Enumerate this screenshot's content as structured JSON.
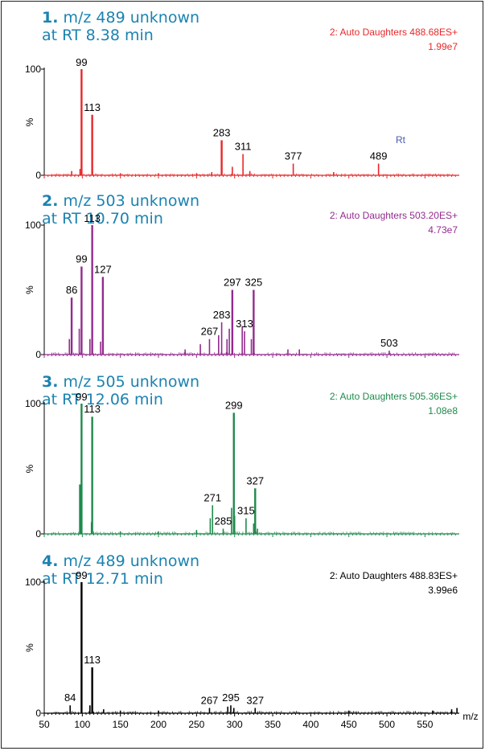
{
  "chart_data": {
    "type": "line",
    "xlabel": "m/z",
    "xlim": [
      50,
      595
    ],
    "x_ticks": [
      50,
      100,
      150,
      200,
      250,
      300,
      350,
      400,
      450,
      500,
      550
    ],
    "ylabel": "%",
    "ylim": [
      0,
      100
    ],
    "y_ticks": [
      0,
      100
    ],
    "panels": [
      {
        "number": "1.",
        "title_line1": "m/z 489 unknown",
        "title_line2": "at RT 8.38 min",
        "scan_info": "2: Auto Daughters 488.68ES+",
        "intensity": "1.99e7",
        "color": "#e8282a",
        "title_color": "#1b83b0",
        "annotation": "Rt",
        "annotation_color": "#4a5bb0",
        "labels": [
          {
            "x": 99,
            "y": 100,
            "text": "99"
          },
          {
            "x": 113,
            "y": 57,
            "text": "113"
          },
          {
            "x": 283,
            "y": 33,
            "text": "283"
          },
          {
            "x": 311,
            "y": 20,
            "text": "311"
          },
          {
            "x": 377,
            "y": 11,
            "text": "377"
          },
          {
            "x": 489,
            "y": 11,
            "text": "489"
          }
        ],
        "peaks": [
          [
            99,
            100
          ],
          [
            113,
            57
          ],
          [
            283,
            33
          ],
          [
            311,
            20
          ],
          [
            377,
            11
          ],
          [
            489,
            11
          ],
          [
            86,
            4
          ],
          [
            97,
            6
          ],
          [
            297,
            8
          ],
          [
            320,
            4
          ],
          [
            270,
            3
          ],
          [
            430,
            3
          ],
          [
            250,
            2
          ],
          [
            150,
            2
          ],
          [
            200,
            2
          ]
        ]
      },
      {
        "number": "2.",
        "title_line1": "m/z 503 unknown",
        "title_line2": "at RT 10.70 min",
        "scan_info": "2: Auto Daughters 503.20ES+",
        "intensity": "4.73e7",
        "color": "#932b8e",
        "title_color": "#1b83b0",
        "labels": [
          {
            "x": 86,
            "y": 44,
            "text": "86"
          },
          {
            "x": 99,
            "y": 68,
            "text": "99"
          },
          {
            "x": 113,
            "y": 100,
            "text": "113"
          },
          {
            "x": 127,
            "y": 60,
            "text": "127"
          },
          {
            "x": 267,
            "y": 12,
            "text": "267"
          },
          {
            "x": 283,
            "y": 25,
            "text": "283"
          },
          {
            "x": 297,
            "y": 50,
            "text": "297"
          },
          {
            "x": 313,
            "y": 18,
            "text": "313"
          },
          {
            "x": 325,
            "y": 50,
            "text": "325"
          },
          {
            "x": 503,
            "y": 3,
            "text": "503"
          }
        ],
        "peaks": [
          [
            86,
            44
          ],
          [
            99,
            68
          ],
          [
            113,
            100
          ],
          [
            127,
            60
          ],
          [
            267,
            12
          ],
          [
            283,
            25
          ],
          [
            297,
            50
          ],
          [
            313,
            18
          ],
          [
            325,
            50
          ],
          [
            503,
            3
          ],
          [
            83,
            12
          ],
          [
            96,
            20
          ],
          [
            110,
            12
          ],
          [
            124,
            10
          ],
          [
            279,
            15
          ],
          [
            293,
            20
          ],
          [
            310,
            22
          ],
          [
            255,
            8
          ],
          [
            235,
            4
          ],
          [
            370,
            4
          ],
          [
            385,
            4
          ],
          [
            290,
            12
          ],
          [
            322,
            12
          ]
        ]
      },
      {
        "number": "3.",
        "title_line1": "m/z 505 unknown",
        "title_line2": "at RT 12.06 min",
        "scan_info": "2: Auto Daughters 505.36ES+",
        "intensity": "1.08e8",
        "color": "#1f8a4c",
        "title_color": "#1b83b0",
        "labels": [
          {
            "x": 99,
            "y": 100,
            "text": "99"
          },
          {
            "x": 113,
            "y": 90,
            "text": "113"
          },
          {
            "x": 299,
            "y": 93,
            "text": "299"
          },
          {
            "x": 271,
            "y": 22,
            "text": "271"
          },
          {
            "x": 285,
            "y": 4,
            "text": "285"
          },
          {
            "x": 315,
            "y": 12,
            "text": "315"
          },
          {
            "x": 327,
            "y": 35,
            "text": "327"
          }
        ],
        "peaks": [
          [
            99,
            100
          ],
          [
            113,
            90
          ],
          [
            299,
            93
          ],
          [
            271,
            22
          ],
          [
            285,
            4
          ],
          [
            315,
            12
          ],
          [
            327,
            35
          ],
          [
            97,
            38
          ],
          [
            112,
            9
          ],
          [
            268,
            12
          ],
          [
            296,
            20
          ],
          [
            300,
            14
          ],
          [
            325,
            8
          ],
          [
            150,
            2
          ],
          [
            200,
            2
          ],
          [
            250,
            3
          ],
          [
            330,
            4
          ]
        ]
      },
      {
        "number": "4.",
        "title_line1": "m/z 489 unknown",
        "title_line2": "at RT 12.71 min",
        "scan_info": "2: Auto Daughters 488.83ES+",
        "intensity": "3.99e6",
        "color": "#000000",
        "title_color": "#1b83b0",
        "labels": [
          {
            "x": 84,
            "y": 6,
            "text": "84"
          },
          {
            "x": 99,
            "y": 100,
            "text": "99"
          },
          {
            "x": 113,
            "y": 35,
            "text": "113"
          },
          {
            "x": 267,
            "y": 4,
            "text": "267"
          },
          {
            "x": 295,
            "y": 6,
            "text": "295"
          },
          {
            "x": 327,
            "y": 4,
            "text": "327"
          }
        ],
        "peaks": [
          [
            84,
            6
          ],
          [
            99,
            100
          ],
          [
            113,
            35
          ],
          [
            267,
            4
          ],
          [
            295,
            6
          ],
          [
            327,
            4
          ],
          [
            110,
            6
          ],
          [
            128,
            3
          ],
          [
            291,
            5
          ],
          [
            299,
            4
          ],
          [
            592,
            4
          ],
          [
            585,
            3
          ],
          [
            560,
            2
          ],
          [
            450,
            2
          ],
          [
            200,
            2
          ],
          [
            150,
            2
          ]
        ]
      }
    ]
  }
}
